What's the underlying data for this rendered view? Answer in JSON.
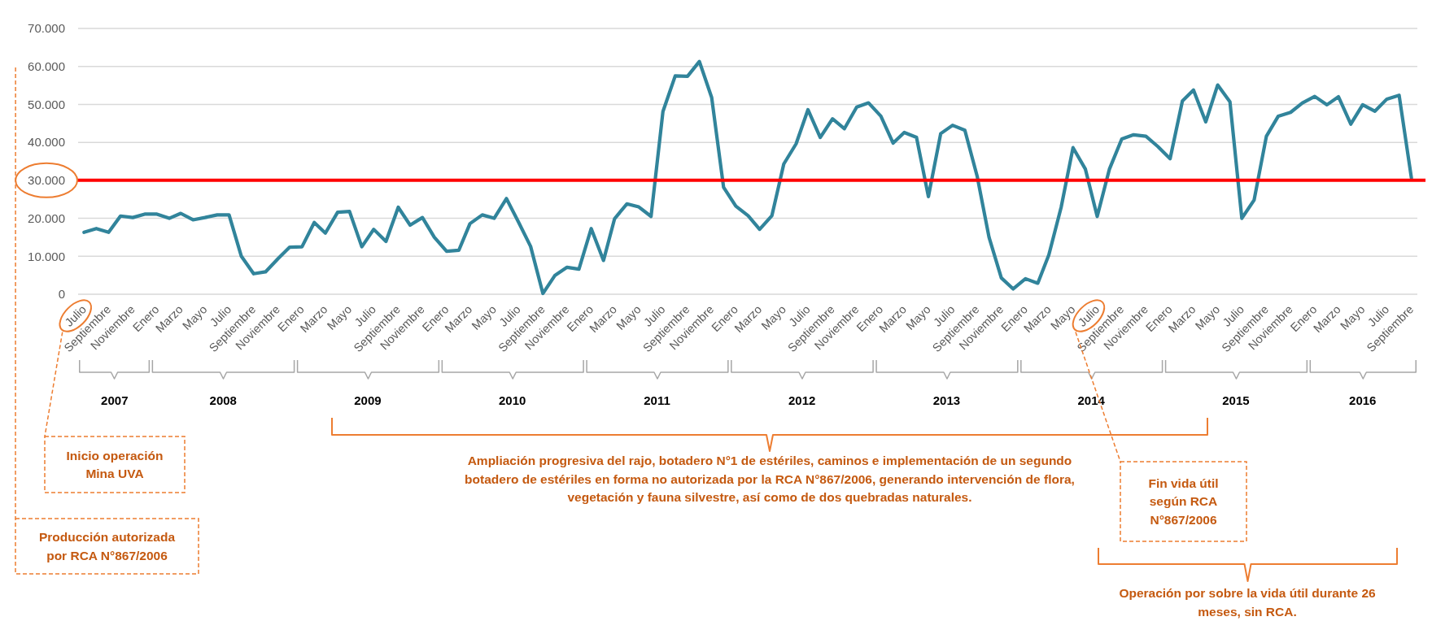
{
  "chart_data": {
    "type": "line",
    "x": [
      "2007-07",
      "2007-08",
      "2007-09",
      "2007-10",
      "2007-11",
      "2007-12",
      "2008-01",
      "2008-02",
      "2008-03",
      "2008-04",
      "2008-05",
      "2008-06",
      "2008-07",
      "2008-08",
      "2008-09",
      "2008-10",
      "2008-11",
      "2008-12",
      "2009-01",
      "2009-02",
      "2009-03",
      "2009-04",
      "2009-05",
      "2009-06",
      "2009-07",
      "2009-08",
      "2009-09",
      "2009-10",
      "2009-11",
      "2009-12",
      "2010-01",
      "2010-02",
      "2010-03",
      "2010-04",
      "2010-05",
      "2010-06",
      "2010-07",
      "2010-08",
      "2010-09",
      "2010-10",
      "2010-11",
      "2010-12",
      "2011-01",
      "2011-02",
      "2011-03",
      "2011-04",
      "2011-05",
      "2011-06",
      "2011-07",
      "2011-08",
      "2011-09",
      "2011-10",
      "2011-11",
      "2011-12",
      "2012-01",
      "2012-02",
      "2012-03",
      "2012-04",
      "2012-05",
      "2012-06",
      "2012-07",
      "2012-08",
      "2012-09",
      "2012-10",
      "2012-11",
      "2012-12",
      "2013-01",
      "2013-02",
      "2013-03",
      "2013-04",
      "2013-05",
      "2013-06",
      "2013-07",
      "2013-08",
      "2013-09",
      "2013-10",
      "2013-11",
      "2013-12",
      "2014-01",
      "2014-02",
      "2014-03",
      "2014-04",
      "2014-05",
      "2014-06",
      "2014-07",
      "2014-08",
      "2014-09",
      "2014-10",
      "2014-11",
      "2014-12",
      "2015-01",
      "2015-02",
      "2015-03",
      "2015-04",
      "2015-05",
      "2015-06",
      "2015-07",
      "2015-08",
      "2015-09",
      "2015-10",
      "2015-11",
      "2015-12",
      "2016-01",
      "2016-02",
      "2016-03",
      "2016-04",
      "2016-05",
      "2016-06",
      "2016-07",
      "2016-08",
      "2016-09"
    ],
    "series": [
      {
        "color": "#31849b",
        "values": [
          16300,
          17300,
          16300,
          20600,
          20200,
          21100,
          21100,
          20000,
          21300,
          19600,
          20200,
          20900,
          20900,
          10000,
          5400,
          5900,
          9300,
          12400,
          12500,
          18900,
          16100,
          21600,
          21800,
          12500,
          17100,
          13900,
          22900,
          18200,
          20200,
          15000,
          11300,
          11600,
          18600,
          20900,
          20000,
          25200,
          19100,
          12600,
          200,
          4900,
          7100,
          6600,
          17300,
          8900,
          19900,
          23800,
          23000,
          20500,
          48100,
          57500,
          57400,
          61300,
          51800,
          28200,
          23200,
          20700,
          17100,
          20700,
          34300,
          39600,
          48600,
          41300,
          46200,
          43600,
          49300,
          50400,
          46900,
          39800,
          42600,
          41300,
          25700,
          42300,
          44500,
          43200,
          31100,
          15000,
          4300,
          1400,
          4100,
          2900,
          10400,
          22900,
          38600,
          33000,
          20500,
          33000,
          40900,
          42000,
          41600,
          38900,
          35700,
          50900,
          53800,
          45400,
          55100,
          50700,
          20000,
          24800,
          41600,
          46900,
          47900,
          50400,
          52100,
          49900,
          52000,
          44800,
          49900,
          48200,
          51400,
          52400,
          30600
        ]
      }
    ],
    "xlim": [
      "2007-06-16",
      "2016-09-16"
    ],
    "xticks": [
      {
        "value": "2007-07",
        "label": "Julio"
      },
      {
        "value": "2007-09",
        "label": "Septiembre"
      },
      {
        "value": "2007-11",
        "label": "Noviembre"
      },
      {
        "value": "2008-01",
        "label": "Enero"
      },
      {
        "value": "2008-03",
        "label": "Marzo"
      },
      {
        "value": "2008-05",
        "label": "Mayo"
      },
      {
        "value": "2008-07",
        "label": "Julio"
      },
      {
        "value": "2008-09",
        "label": "Septiembre"
      },
      {
        "value": "2008-11",
        "label": "Noviembre"
      },
      {
        "value": "2009-01",
        "label": "Enero"
      },
      {
        "value": "2009-03",
        "label": "Marzo"
      },
      {
        "value": "2009-05",
        "label": "Mayo"
      },
      {
        "value": "2009-07",
        "label": "Julio"
      },
      {
        "value": "2009-09",
        "label": "Septiembre"
      },
      {
        "value": "2009-11",
        "label": "Noviembre"
      },
      {
        "value": "2010-01",
        "label": "Enero"
      },
      {
        "value": "2010-03",
        "label": "Marzo"
      },
      {
        "value": "2010-05",
        "label": "Mayo"
      },
      {
        "value": "2010-07",
        "label": "Julio"
      },
      {
        "value": "2010-09",
        "label": "Septiembre"
      },
      {
        "value": "2010-11",
        "label": "Noviembre"
      },
      {
        "value": "2011-01",
        "label": "Enero"
      },
      {
        "value": "2011-03",
        "label": "Marzo"
      },
      {
        "value": "2011-05",
        "label": "Mayo"
      },
      {
        "value": "2011-07",
        "label": "Julio"
      },
      {
        "value": "2011-09",
        "label": "Septiembre"
      },
      {
        "value": "2011-11",
        "label": "Noviembre"
      },
      {
        "value": "2012-01",
        "label": "Enero"
      },
      {
        "value": "2012-03",
        "label": "Marzo"
      },
      {
        "value": "2012-05",
        "label": "Mayo"
      },
      {
        "value": "2012-07",
        "label": "Julio"
      },
      {
        "value": "2012-09",
        "label": "Septiembre"
      },
      {
        "value": "2012-11",
        "label": "Noviembre"
      },
      {
        "value": "2013-01",
        "label": "Enero"
      },
      {
        "value": "2013-03",
        "label": "Marzo"
      },
      {
        "value": "2013-05",
        "label": "Mayo"
      },
      {
        "value": "2013-07",
        "label": "Julio"
      },
      {
        "value": "2013-09",
        "label": "Septiembre"
      },
      {
        "value": "2013-11",
        "label": "Noviembre"
      },
      {
        "value": "2014-01",
        "label": "Enero"
      },
      {
        "value": "2014-03",
        "label": "Marzo"
      },
      {
        "value": "2014-05",
        "label": "Mayo"
      },
      {
        "value": "2014-07",
        "label": "Julio"
      },
      {
        "value": "2014-09",
        "label": "Septiembre"
      },
      {
        "value": "2014-11",
        "label": "Noviembre"
      },
      {
        "value": "2015-01",
        "label": "Enero"
      },
      {
        "value": "2015-03",
        "label": "Marzo"
      },
      {
        "value": "2015-05",
        "label": "Mayo"
      },
      {
        "value": "2015-07",
        "label": "Julio"
      },
      {
        "value": "2015-09",
        "label": "Septiembre"
      },
      {
        "value": "2015-11",
        "label": "Noviembre"
      },
      {
        "value": "2016-01",
        "label": "Enero"
      },
      {
        "value": "2016-03",
        "label": "Marzo"
      },
      {
        "value": "2016-05",
        "label": "Mayo"
      },
      {
        "value": "2016-07",
        "label": "Julio"
      },
      {
        "value": "2016-09",
        "label": "Septiembre"
      }
    ],
    "x2lim": [
      "2007-06-16",
      "2016-09-16"
    ],
    "x2ticks": [
      {
        "value": "2007-09-16",
        "label": "2007"
      },
      {
        "value": "2008-06-16",
        "label": "2008"
      },
      {
        "value": "2009-06-16",
        "label": "2009"
      },
      {
        "value": "2010-06-16",
        "label": "2010"
      },
      {
        "value": "2011-06-16",
        "label": "2011"
      },
      {
        "value": "2012-06-16",
        "label": "2012"
      },
      {
        "value": "2013-06-16",
        "label": "2013"
      },
      {
        "value": "2014-06-16",
        "label": "2014"
      },
      {
        "value": "2015-06-16",
        "label": "2015"
      },
      {
        "value": "2016-05",
        "label": "2016"
      }
    ],
    "ylim": [
      0,
      70000
    ],
    "yticks": [
      0,
      {
        "value": 10000,
        "label": "10.000"
      },
      {
        "value": 20000,
        "label": "20.000"
      },
      {
        "value": 30000,
        "label": "30.000"
      },
      {
        "value": 40000,
        "label": "40.000"
      },
      {
        "value": 50000,
        "label": "50.000"
      },
      {
        "value": 60000,
        "label": "60.000"
      },
      {
        "value": 70000,
        "label": "70.000"
      }
    ],
    "grid": "y",
    "ref_lines": [
      {
        "axis": "y",
        "value": 30000,
        "color": "#ff0000"
      }
    ],
    "annotations": [
      "Producción autorizada por RCA N°867/2006",
      "Inicio operación Mina UVA",
      "Ampliación progresiva del rajo, botadero N°1 de estériles, caminos e implementación de un segundo botadero de estériles en forma no autorizada por la RCA N°867/2006, generando intervención de flora, vegetación y fauna silvestre, así como de dos quebradas naturales.",
      "Fin vida útil según RCA N°867/2006",
      "Operación por sobre la vida útil durante 26 meses, sin RCA."
    ]
  }
}
